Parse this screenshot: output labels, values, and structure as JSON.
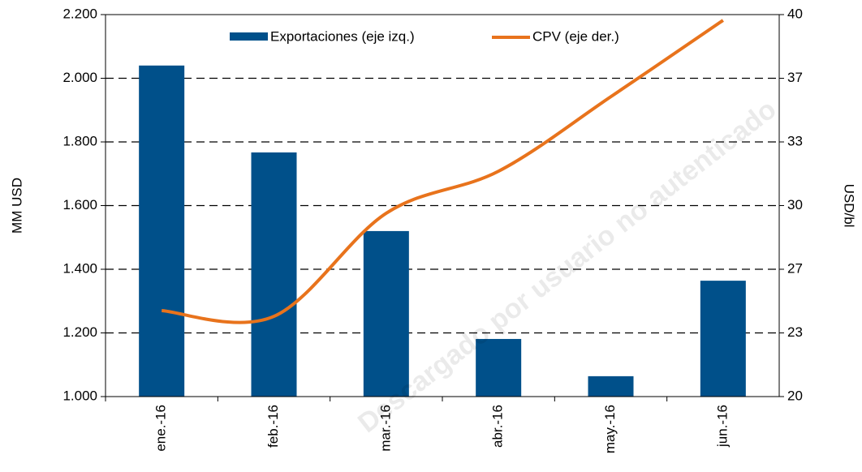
{
  "chart_data": {
    "type": "bar_line",
    "categories": [
      "ene.-16",
      "feb.-16",
      "mar.-16",
      "abr.-16",
      "may.-16",
      "jun.-16"
    ],
    "series": [
      {
        "name": "Exportaciones (eje izq.)",
        "type": "bar",
        "color": "#00508a",
        "values": [
          2040,
          1767,
          1520,
          1181,
          1064,
          1364
        ]
      },
      {
        "name": "CPV (eje der.)",
        "type": "line",
        "color": "#e8731c",
        "axis": "y2",
        "values": [
          24.5,
          24.2,
          29.6,
          31.8,
          35.7,
          39.7
        ]
      }
    ],
    "ylabel": "MM USD",
    "y2label": "USD/bl",
    "ylim": [
      1000,
      2200
    ],
    "yticks": [
      {
        "value": 1000,
        "label": "1.000"
      },
      {
        "value": 1200,
        "label": "1.200"
      },
      {
        "value": 1400,
        "label": "1.400"
      },
      {
        "value": 1600,
        "label": "1.600"
      },
      {
        "value": 1800,
        "label": "1.800"
      },
      {
        "value": 2000,
        "label": "2.000"
      },
      {
        "value": 2200,
        "label": "2.200"
      }
    ],
    "y2lim": [
      20,
      40
    ],
    "y2ticks": [
      20,
      {
        "value": 23.333,
        "label": "23"
      },
      {
        "value": 26.667,
        "label": "27"
      },
      30,
      {
        "value": 33.333,
        "label": "33"
      },
      {
        "value": 36.667,
        "label": "37"
      },
      40
    ],
    "grid": true,
    "legend": "top",
    "watermark": "Descargado por usuario no autenticado"
  }
}
